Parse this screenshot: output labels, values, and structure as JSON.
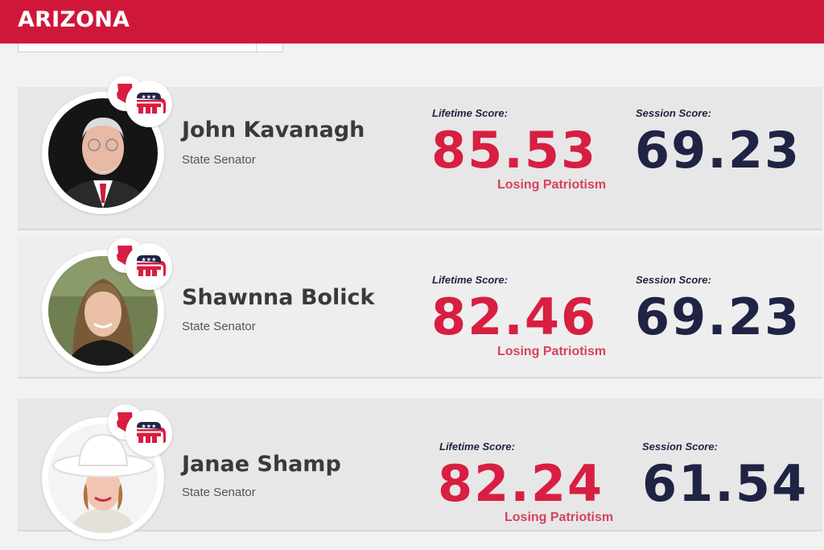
{
  "header": {
    "title": "ARIZONA"
  },
  "labels": {
    "lifetime_score": "Lifetime Score:",
    "session_score": "Session Score:"
  },
  "colors": {
    "header_red": "#cf1839",
    "lifetime_red": "#d81e41",
    "session_navy": "#1f2344",
    "status_red": "#d8415d"
  },
  "icons": {
    "party": "republican-elephant-icon",
    "state": "arizona-state-icon"
  },
  "legislators": [
    {
      "name": "John Kavanagh",
      "role": "State Senator",
      "lifetime_score": "85.53",
      "session_score": "69.23",
      "status": "Losing Patriotism"
    },
    {
      "name": "Shawnna Bolick",
      "role": "State Senator",
      "lifetime_score": "82.46",
      "session_score": "69.23",
      "status": "Losing Patriotism"
    },
    {
      "name": "Janae Shamp",
      "role": "State Senator",
      "lifetime_score": "82.24",
      "session_score": "61.54",
      "status": "Losing Patriotism"
    }
  ]
}
